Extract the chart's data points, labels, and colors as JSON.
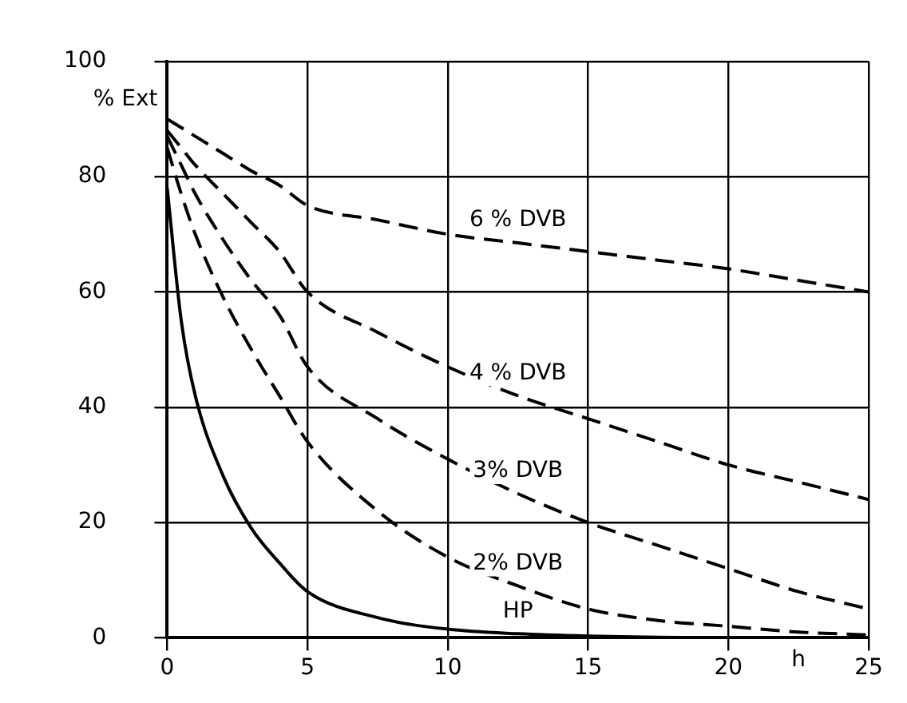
{
  "chart_data": {
    "type": "line",
    "xlabel": "h",
    "ylabel": "% Ext",
    "x": [
      0,
      0.5,
      1,
      2,
      3,
      4,
      5,
      7.5,
      10,
      12.5,
      15,
      17.5,
      20,
      22.5,
      25
    ],
    "series": [
      {
        "name": "6 % DVB",
        "color": "#000000",
        "line_style": "dashed",
        "values": [
          90,
          88.5,
          87,
          84,
          81,
          78.5,
          75,
          72.5,
          70,
          68.5,
          67,
          65.5,
          64,
          62,
          60
        ]
      },
      {
        "name": "4 % DVB",
        "color": "#000000",
        "line_style": "dashed",
        "values": [
          88,
          85,
          82,
          77,
          72,
          67,
          60,
          53,
          47,
          42,
          38,
          34,
          30,
          27,
          24
        ]
      },
      {
        "name": "3% DVB",
        "color": "#000000",
        "line_style": "dashed",
        "values": [
          87,
          82,
          77,
          69,
          62,
          56,
          47,
          38,
          31,
          25,
          20,
          16,
          12,
          8,
          5
        ]
      },
      {
        "name": "2% DVB",
        "color": "#000000",
        "line_style": "dashed",
        "values": [
          85,
          77,
          70,
          59,
          50,
          42,
          34,
          22,
          14,
          9,
          5,
          3,
          2,
          1,
          0.5
        ]
      },
      {
        "name": "HP",
        "color": "#000000",
        "line_style": "solid",
        "values": [
          78,
          55,
          42,
          28,
          19,
          13,
          8,
          3.5,
          1.5,
          0.7,
          0.3,
          0.1,
          0,
          0,
          0
        ]
      }
    ],
    "xlim": [
      0,
      25
    ],
    "xticks": [
      0,
      5,
      10,
      15,
      20,
      25
    ],
    "ylim": [
      0,
      100
    ],
    "yticks": [
      0,
      20,
      40,
      60,
      80,
      100
    ],
    "grid": true,
    "legend": false,
    "marker": "none"
  }
}
